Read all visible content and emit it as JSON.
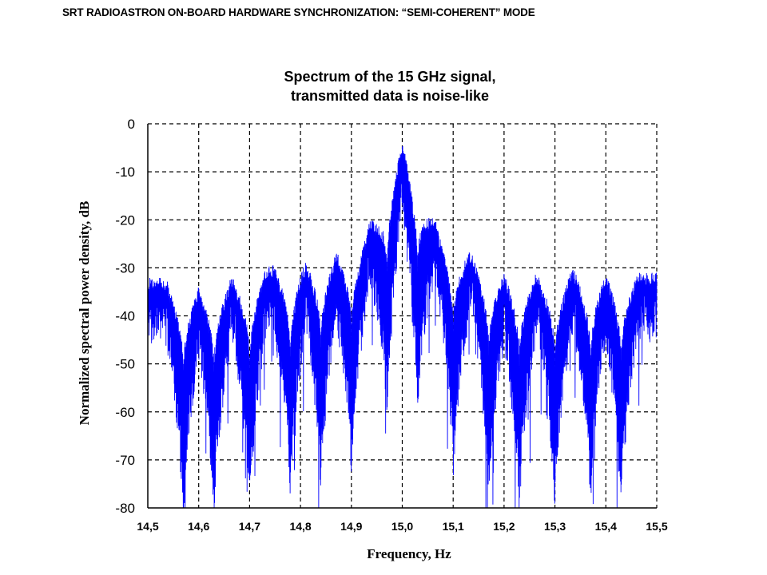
{
  "header": {
    "text": "SRT RADIOASTRON ON-BOARD HARDWARE SYNCHRONIZATION:  “SEMI-COHERENT” MODE"
  },
  "chart_data": {
    "type": "line",
    "title_line1": "Spectrum of the 15 GHz signal,",
    "title_line2": "transmitted data is noise-like",
    "xlabel": "Frequency, Hz",
    "ylabel": "Normalized spectral power density, dB",
    "xlim": [
      14.5,
      15.5
    ],
    "ylim": [
      -80,
      0
    ],
    "x_ticks": [
      14.5,
      14.6,
      14.7,
      14.8,
      14.9,
      15.0,
      15.1,
      15.2,
      15.3,
      15.4,
      15.5
    ],
    "x_tick_labels": [
      "14,5",
      "14,6",
      "14,7",
      "14,8",
      "14,9",
      "15,0",
      "15,1",
      "15,2",
      "15,3",
      "15,4",
      "15,5"
    ],
    "y_ticks": [
      0,
      -10,
      -20,
      -30,
      -40,
      -50,
      -60,
      -70,
      -80
    ],
    "y_tick_labels": [
      "0",
      "-10",
      "-20",
      "-30",
      "-40",
      "-50",
      "-60",
      "-70",
      "-80"
    ],
    "grid": true,
    "grid_style": "dashed",
    "line_color": "#0000ff",
    "series": [
      {
        "description_kind": "sinc-squared spectrum envelope, noise-like fill",
        "center": 15.0,
        "lobe_spacing": 0.0667,
        "envelope_peaks": [
          {
            "x": 14.52,
            "y": -32
          },
          {
            "x": 14.59,
            "y": -33
          },
          {
            "x": 14.66,
            "y": -32
          },
          {
            "x": 14.72,
            "y": -30
          },
          {
            "x": 14.79,
            "y": -28
          },
          {
            "x": 14.86,
            "y": -26
          },
          {
            "x": 14.93,
            "y": -22
          },
          {
            "x": 15.0,
            "y": -2
          },
          {
            "x": 15.07,
            "y": -21
          },
          {
            "x": 15.13,
            "y": -26
          },
          {
            "x": 15.2,
            "y": -30
          },
          {
            "x": 15.27,
            "y": -31
          },
          {
            "x": 15.33,
            "y": -30
          },
          {
            "x": 15.4,
            "y": -30
          },
          {
            "x": 15.47,
            "y": -31
          }
        ],
        "nulls": [
          14.57,
          14.63,
          14.7,
          14.78,
          14.84,
          14.9,
          14.97,
          15.03,
          15.1,
          15.17,
          15.23,
          15.3,
          15.37,
          15.43
        ],
        "null_depth_min": -80
      }
    ]
  }
}
